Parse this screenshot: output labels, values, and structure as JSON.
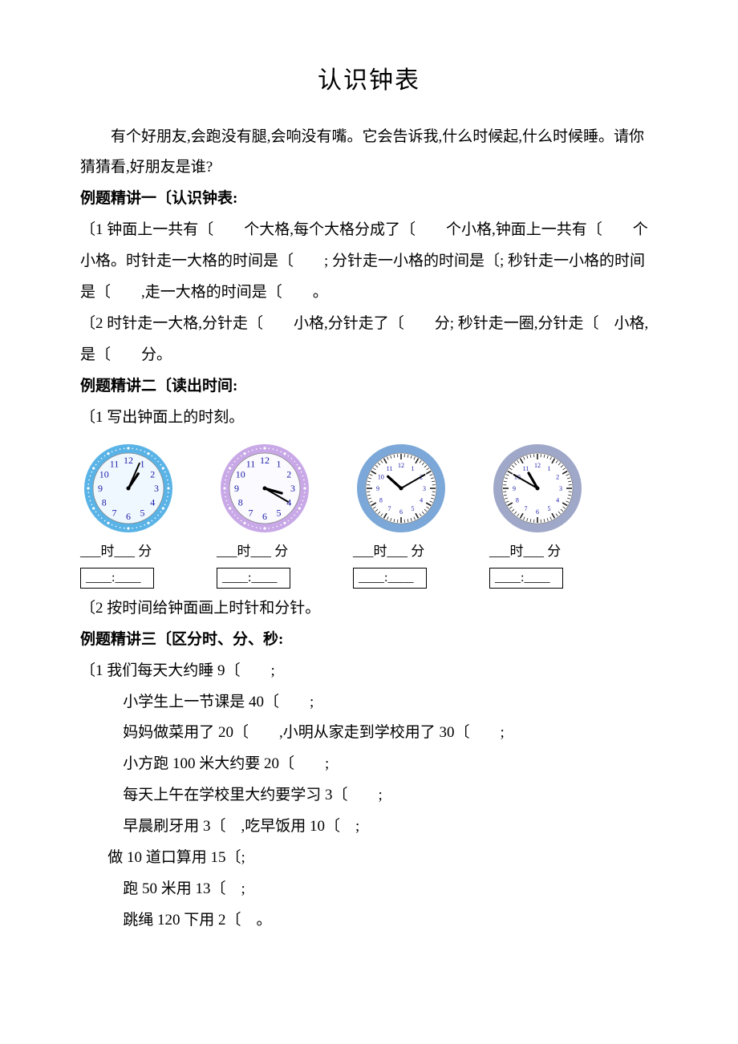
{
  "title": "认识钟表",
  "intro": "有个好朋友,会跑没有腿,会响没有嘴。它会告诉我,什么时候起,什么时候睡。请你猜猜看,好朋友是谁?",
  "sec1": {
    "head": "例题精讲一〔认识钟表:",
    "q1": "〔1 钟面上一共有〔　　个大格,每个大格分成了〔　　个小格,钟面上一共有〔　　个小格。时针走一大格的时间是〔　　; 分针走一小格的时间是〔; 秒针走一小格的时间是〔　　,走一大格的时间是〔　　。",
    "q2": "〔2 时针走一大格,分针走〔　　小格,分针走了〔　　分; 秒针走一圈,分针走〔　小格,是〔　　分。"
  },
  "sec2": {
    "head": "例题精讲二〔读出时间:",
    "q1": "〔1 写出钟面上的时刻。",
    "label": "___时___ 分",
    "colon": "____:____",
    "q2": "〔2 按时间给钟面画上时针和分针。",
    "clocks": [
      {
        "ring": "#5ab3e6",
        "inner": "#f0f8ff",
        "hour_angle": 34,
        "minute_angle": 24,
        "tick_style": "numbers"
      },
      {
        "ring": "#c8a8e6",
        "inner": "#fafaff",
        "hour_angle": 106,
        "minute_angle": 120,
        "tick_style": "numbers"
      },
      {
        "ring": "#7ba8d8",
        "inner": "#ffffff",
        "hour_angle": 312,
        "minute_angle": 60,
        "tick_style": "ticks"
      },
      {
        "ring": "#9fa8c8",
        "inner": "#ffffff",
        "hour_angle": 330,
        "minute_angle": 300,
        "tick_style": "ticks"
      }
    ]
  },
  "sec3": {
    "head": "例题精讲三〔区分时、分、秒:",
    "lead": "〔1 我们每天大约睡 9〔　　;",
    "lines": [
      "小学生上一节课是 40〔　　;",
      "妈妈做菜用了 20〔　　,小明从家走到学校用了 30〔　　;",
      "小方跑 100 米大约要 20〔　　;",
      "每天上午在学校里大约要学习 3〔　　;",
      "早晨刷牙用 3〔　,吃早饭用 10〔　;"
    ],
    "line_calc": "做 10 道口算用 15〔;",
    "lines2": [
      "跑 50 米用 13〔　;",
      "跳绳 120 下用 2〔　。"
    ]
  },
  "colors": {
    "text": "#000000",
    "bg": "#ffffff",
    "number_color": "#1a1aa8",
    "hand_color": "#000000",
    "tick_dark": "#222222"
  }
}
